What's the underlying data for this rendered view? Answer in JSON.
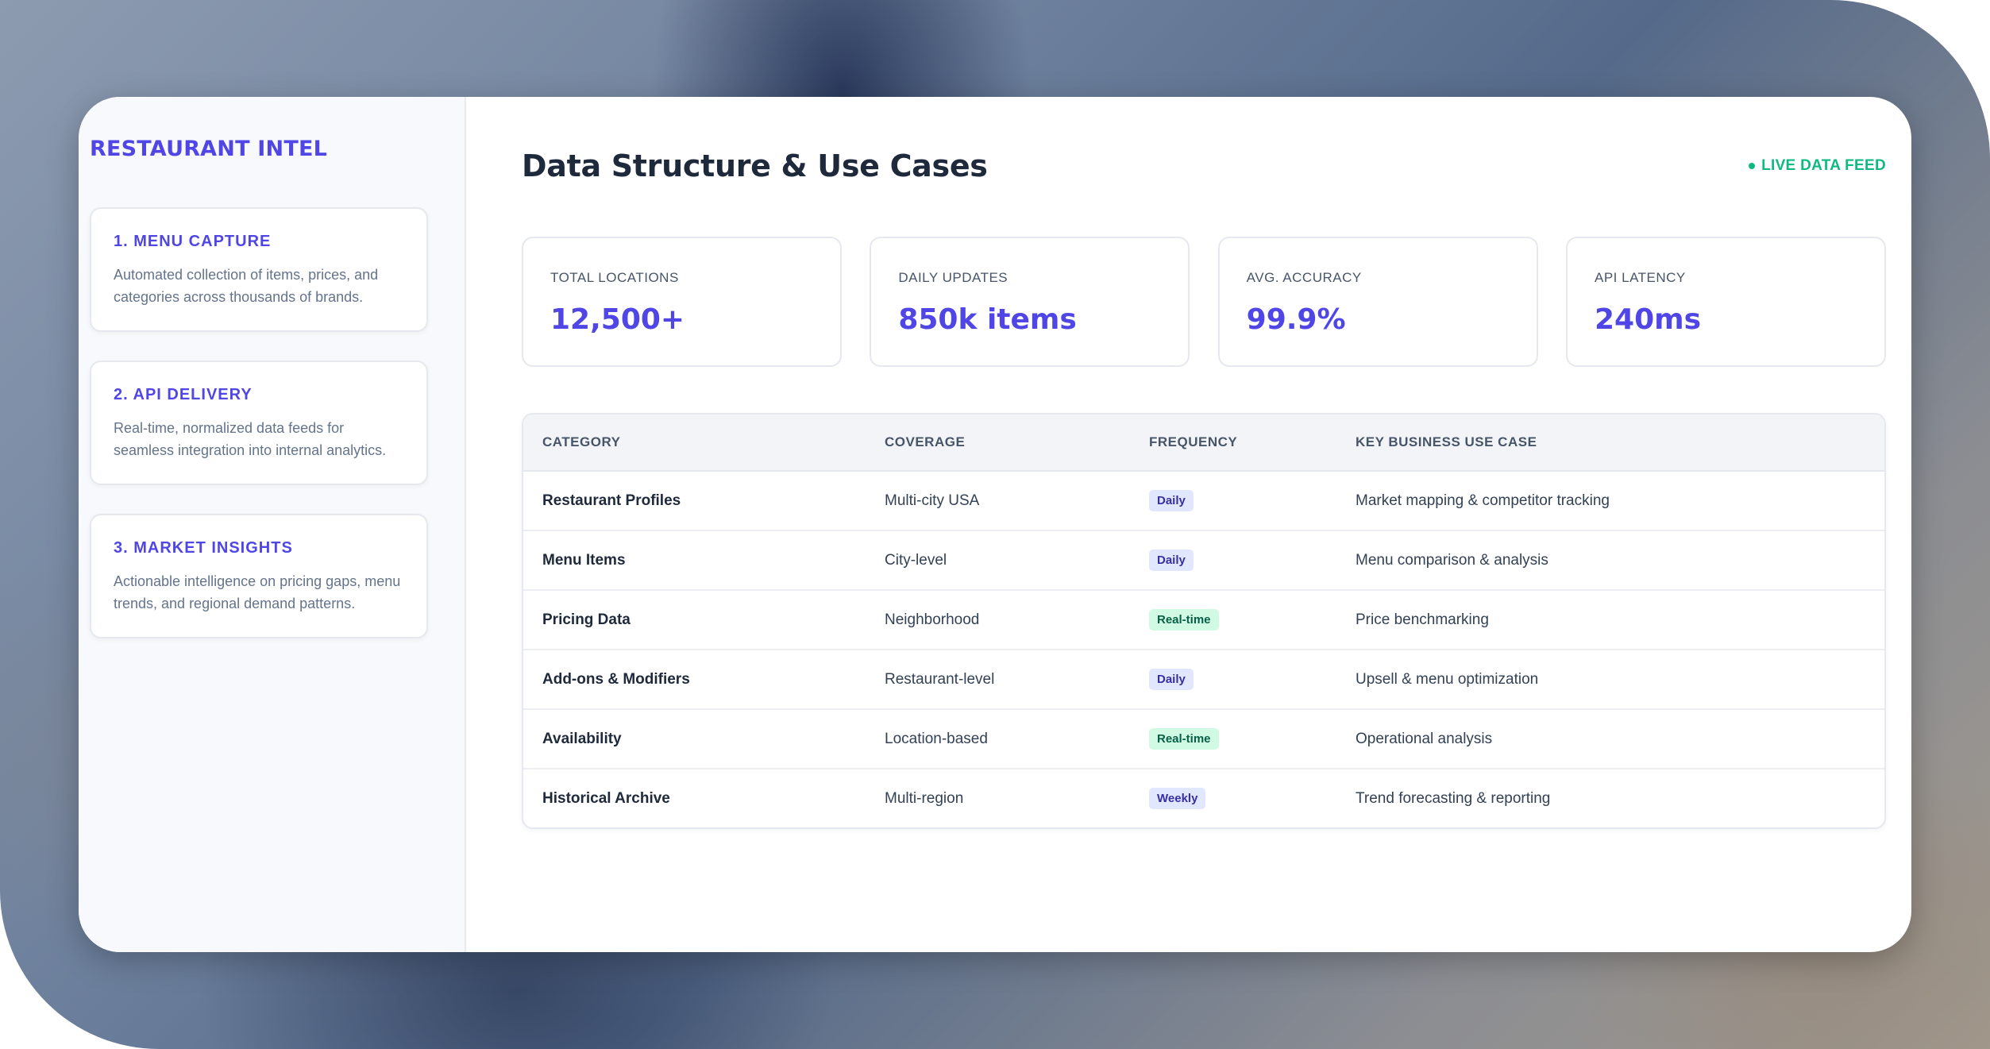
{
  "brand": "RESTAURANT INTEL",
  "steps": [
    {
      "title": "1. MENU CAPTURE",
      "desc": "Automated collection of items, prices, and categories across thousands of brands."
    },
    {
      "title": "2. API DELIVERY",
      "desc": "Real-time, normalized data feeds for seamless integration into internal analytics."
    },
    {
      "title": "3. MARKET INSIGHTS",
      "desc": "Actionable intelligence on pricing gaps, menu trends, and regional demand patterns."
    }
  ],
  "header": {
    "title": "Data Structure & Use Cases",
    "live_label": "LIVE DATA FEED"
  },
  "stats": [
    {
      "label": "TOTAL LOCATIONS",
      "value": "12,500+"
    },
    {
      "label": "DAILY UPDATES",
      "value": "850k items"
    },
    {
      "label": "AVG. ACCURACY",
      "value": "99.9%"
    },
    {
      "label": "API LATENCY",
      "value": "240ms"
    }
  ],
  "table": {
    "headers": [
      "CATEGORY",
      "COVERAGE",
      "FREQUENCY",
      "KEY BUSINESS USE CASE"
    ],
    "rows": [
      {
        "category": "Restaurant Profiles",
        "coverage": "Multi-city USA",
        "frequency": "Daily",
        "use_case": "Market mapping & competitor tracking"
      },
      {
        "category": "Menu Items",
        "coverage": "City-level",
        "frequency": "Daily",
        "use_case": "Menu comparison & analysis"
      },
      {
        "category": "Pricing Data",
        "coverage": "Neighborhood",
        "frequency": "Real-time",
        "use_case": "Price benchmarking"
      },
      {
        "category": "Add-ons & Modifiers",
        "coverage": "Restaurant-level",
        "frequency": "Daily",
        "use_case": "Upsell & menu optimization"
      },
      {
        "category": "Availability",
        "coverage": "Location-based",
        "frequency": "Real-time",
        "use_case": "Operational analysis"
      },
      {
        "category": "Historical Archive",
        "coverage": "Multi-region",
        "frequency": "Weekly",
        "use_case": "Trend forecasting & reporting"
      }
    ]
  },
  "colors": {
    "accent": "#4f46e5",
    "live": "#10b981",
    "badge_daily_bg": "#e0e7ff",
    "badge_realtime_bg": "#d1fae5"
  }
}
